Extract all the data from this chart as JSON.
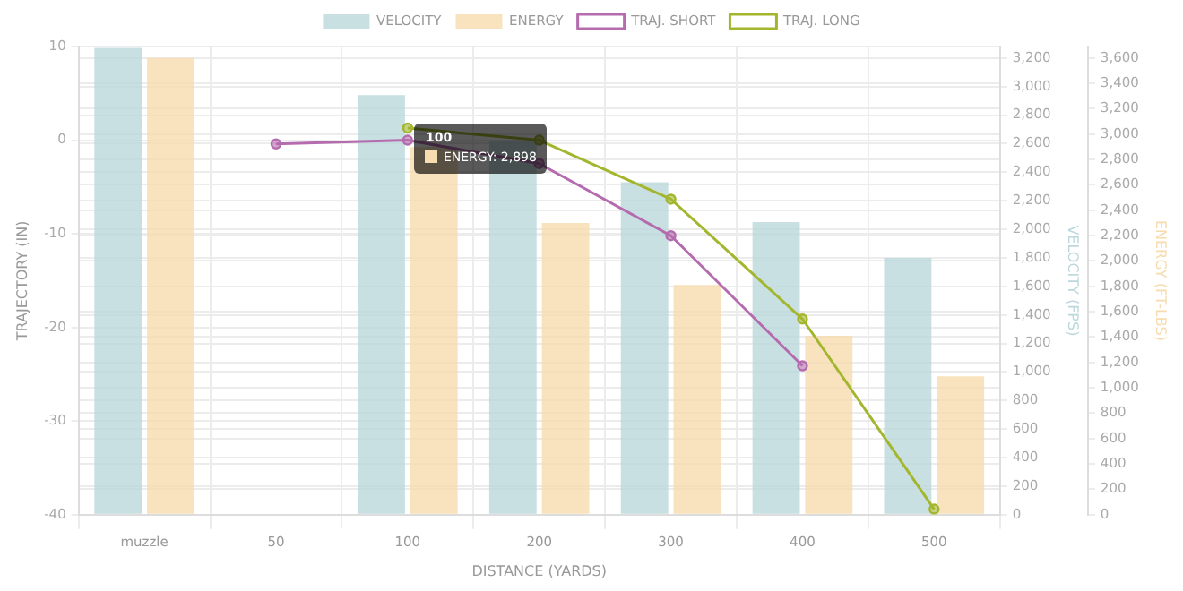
{
  "chart_data": {
    "type": "bar",
    "categories": [
      "muzzle",
      "50",
      "100",
      "200",
      "300",
      "400",
      "500"
    ],
    "xlabel": "DISTANCE (YARDS)",
    "ylabel": "TRAJECTORY (IN)",
    "y2label": "VELOCITY (FPS)",
    "y3label": "ENERGY (FT-LBS)",
    "series": [
      {
        "name": "VELOCITY",
        "axis": "y2",
        "color": "#bcd8dc",
        "values": [
          3270,
          null,
          2940,
          2620,
          2330,
          2050,
          1800
        ]
      },
      {
        "name": "ENERGY",
        "axis": "y3",
        "color": "#f6dcae",
        "values": [
          3600,
          null,
          2898,
          2300,
          1810,
          1410,
          1090
        ]
      },
      {
        "name": "TRAJ. SHORT",
        "type": "line",
        "axis": "y",
        "color": "#b46cae",
        "values": [
          null,
          -0.4,
          0,
          -2.5,
          -10.2,
          -24.1,
          null
        ]
      },
      {
        "name": "TRAJ. LONG",
        "type": "line",
        "axis": "y",
        "color": "#a3b62e",
        "values": [
          null,
          null,
          1.3,
          0,
          -6.3,
          -19.1,
          -39.4
        ]
      }
    ],
    "ylim": [
      -40,
      10
    ],
    "yticks": [
      -40,
      -30,
      -20,
      -10,
      0,
      10
    ],
    "y2lim": [
      0,
      3280
    ],
    "y2ticks": [
      0,
      {
        "value": 200,
        "label": "200"
      },
      {
        "value": 400,
        "label": "400"
      },
      {
        "value": 600,
        "label": "600"
      },
      {
        "value": 800,
        "label": "800"
      },
      {
        "value": 1000,
        "label": "1,000"
      },
      {
        "value": 1200,
        "label": "1,200"
      },
      {
        "value": 1400,
        "label": "1,400"
      },
      {
        "value": 1600,
        "label": "1,600"
      },
      {
        "value": 1800,
        "label": "1,800"
      },
      {
        "value": 2000,
        "label": "2,000"
      },
      {
        "value": 2200,
        "label": "2,200"
      },
      {
        "value": 2400,
        "label": "2,400"
      },
      {
        "value": 2600,
        "label": "2,600"
      },
      {
        "value": 2800,
        "label": "2,800"
      },
      {
        "value": 3000,
        "label": "3,000"
      },
      {
        "value": 3200,
        "label": "3,200"
      }
    ],
    "y3lim": [
      0,
      3690
    ],
    "y3ticks": [
      0,
      {
        "value": 200,
        "label": "200"
      },
      {
        "value": 400,
        "label": "400"
      },
      {
        "value": 600,
        "label": "600"
      },
      {
        "value": 800,
        "label": "800"
      },
      {
        "value": 1000,
        "label": "1,000"
      },
      {
        "value": 1200,
        "label": "1,200"
      },
      {
        "value": 1400,
        "label": "1,400"
      },
      {
        "value": 1600,
        "label": "1,600"
      },
      {
        "value": 1800,
        "label": "1,800"
      },
      {
        "value": 2000,
        "label": "2,000"
      },
      {
        "value": 2200,
        "label": "2,200"
      },
      {
        "value": 2400,
        "label": "2,400"
      },
      {
        "value": 2600,
        "label": "2,600"
      },
      {
        "value": 2800,
        "label": "2,800"
      },
      {
        "value": 3000,
        "label": "3,000"
      },
      {
        "value": 3200,
        "label": "3,200"
      },
      {
        "value": 3400,
        "label": "3,400"
      },
      {
        "value": 3600,
        "label": "3,600"
      }
    ],
    "annotations": [
      "100",
      "ENERGY: 2,898"
    ],
    "grid": true,
    "legend": "top",
    "marker": "circle",
    "line_style": "solid"
  }
}
